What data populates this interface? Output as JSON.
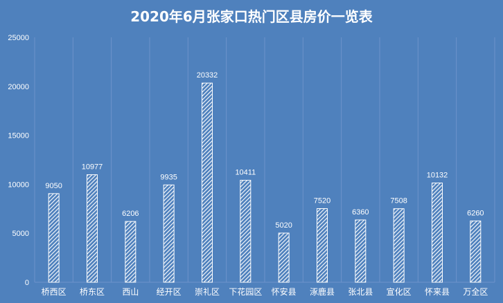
{
  "chart_data": {
    "type": "bar",
    "title": "2020年6月张家口热门区县房价一览表",
    "categories": [
      "桥西区",
      "桥东区",
      "西山",
      "经开区",
      "崇礼区",
      "下花园区",
      "怀安县",
      "涿鹿县",
      "张北县",
      "宣化区",
      "怀来县",
      "万全区"
    ],
    "values": [
      9050,
      10977,
      6206,
      9935,
      20332,
      10411,
      5020,
      7520,
      6360,
      7508,
      10132,
      6260
    ],
    "ylim": [
      0,
      25000
    ],
    "yticks": [
      0,
      5000,
      10000,
      15000,
      20000,
      25000
    ],
    "grid": false,
    "data_labels": true,
    "bar_fill": "white diagonal hatch",
    "colors": {
      "background": "#4f81bd",
      "bar_stroke": "#ffffff",
      "text": "#ffffff",
      "divider": "#6d93cb"
    }
  }
}
